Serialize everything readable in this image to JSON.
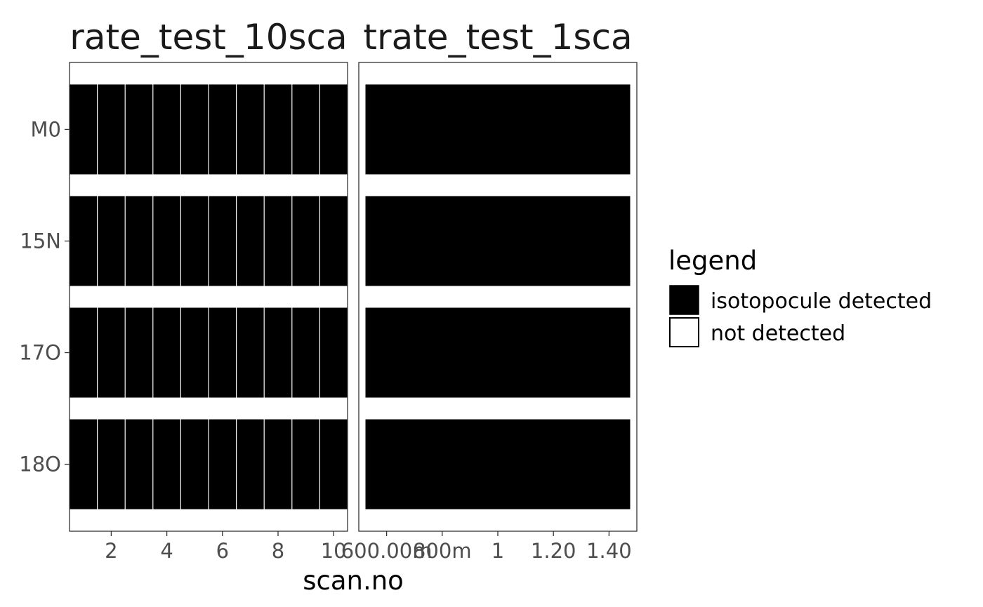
{
  "chart_data": {
    "type": "heatmap",
    "xlabel": "scan.no",
    "ylabel": "",
    "y_categories": [
      "M0",
      "15N",
      "17O",
      "18O"
    ],
    "grid": false,
    "legend": {
      "title": "legend",
      "placement": "right",
      "entries": [
        {
          "label": "isotopocule detected",
          "color": "#000000"
        },
        {
          "label": "not detected",
          "color": "#ffffff"
        }
      ]
    },
    "facets": [
      {
        "title": "rate_test_10sca",
        "xlim": [
          0.5,
          10.5
        ],
        "x_ticks": [
          2,
          4,
          6,
          8,
          10
        ],
        "x_tick_labels": [
          "2",
          "4",
          "6",
          "8",
          "10"
        ],
        "x_values": [
          1,
          2,
          3,
          4,
          5,
          6,
          7,
          8,
          9,
          10
        ],
        "detected": {
          "M0": true,
          "15N": true,
          "17O": true,
          "18O": true
        }
      },
      {
        "title": "trate_test_1sca",
        "xlim": [
          0.5,
          1.5
        ],
        "x_ticks": [
          0.6,
          0.8,
          1.0,
          1.2,
          1.4
        ],
        "x_tick_labels": [
          "600.00m",
          "800m",
          "1",
          "1.20",
          "1.40"
        ],
        "x_values": [
          1
        ],
        "detected": {
          "M0": true,
          "15N": true,
          "17O": true,
          "18O": true
        }
      }
    ]
  },
  "colors": {
    "detected": "#000000",
    "not_detected": "#ffffff",
    "panel_border": "#333333",
    "tick": "#333333"
  }
}
